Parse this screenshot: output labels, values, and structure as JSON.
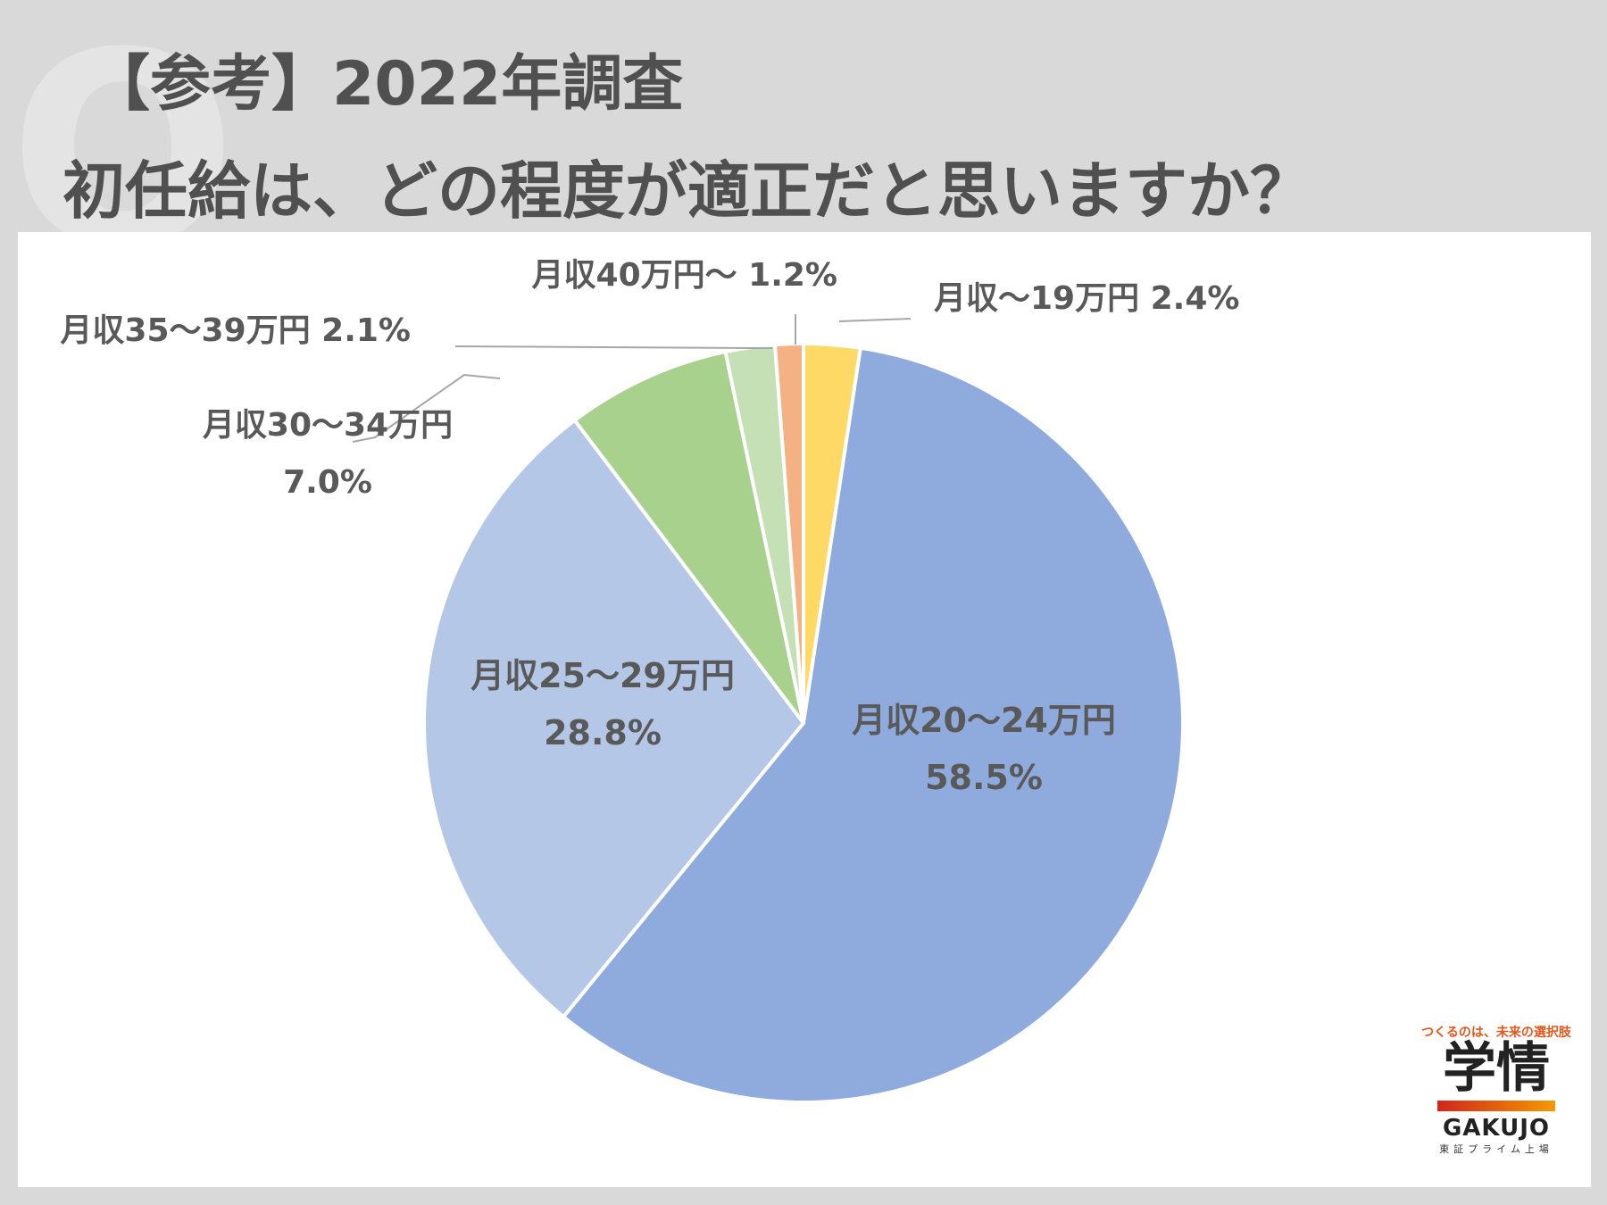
{
  "header": {
    "title_line1": "【参考】2022年調査",
    "title_line2": "初任給は、どの程度が適正だと思いますか？"
  },
  "chart_data": {
    "type": "pie",
    "title": "初任給は、どの程度が適正だと思いますか？",
    "slices": [
      {
        "label": "月収～19万円",
        "value": 2.4,
        "value_label": "2.4%",
        "color": "#ffd966"
      },
      {
        "label": "月収20～24万円",
        "value": 58.5,
        "value_label": "58.5%",
        "color": "#8faadc"
      },
      {
        "label": "月収25～29万円",
        "value": 28.8,
        "value_label": "28.8%",
        "color": "#b4c7e7"
      },
      {
        "label": "月収30～34万円",
        "value": 7.0,
        "value_label": "7.0%",
        "color": "#a9d18e"
      },
      {
        "label": "月収35～39万円",
        "value": 2.1,
        "value_label": "2.1%",
        "color": "#c5e0b4"
      },
      {
        "label": "月収40万円～",
        "value": 1.2,
        "value_label": "1.2%",
        "color": "#f4b183"
      }
    ]
  },
  "logo": {
    "tagline": "つくるのは、未来の選択肢",
    "name_jp": "学情",
    "name_en": "GAKUJO",
    "subtitle": "東証プライム上場"
  },
  "colors": {
    "background": "#d9d9d9",
    "panel": "#ffffff",
    "title": "#505050",
    "label": "#595959"
  }
}
